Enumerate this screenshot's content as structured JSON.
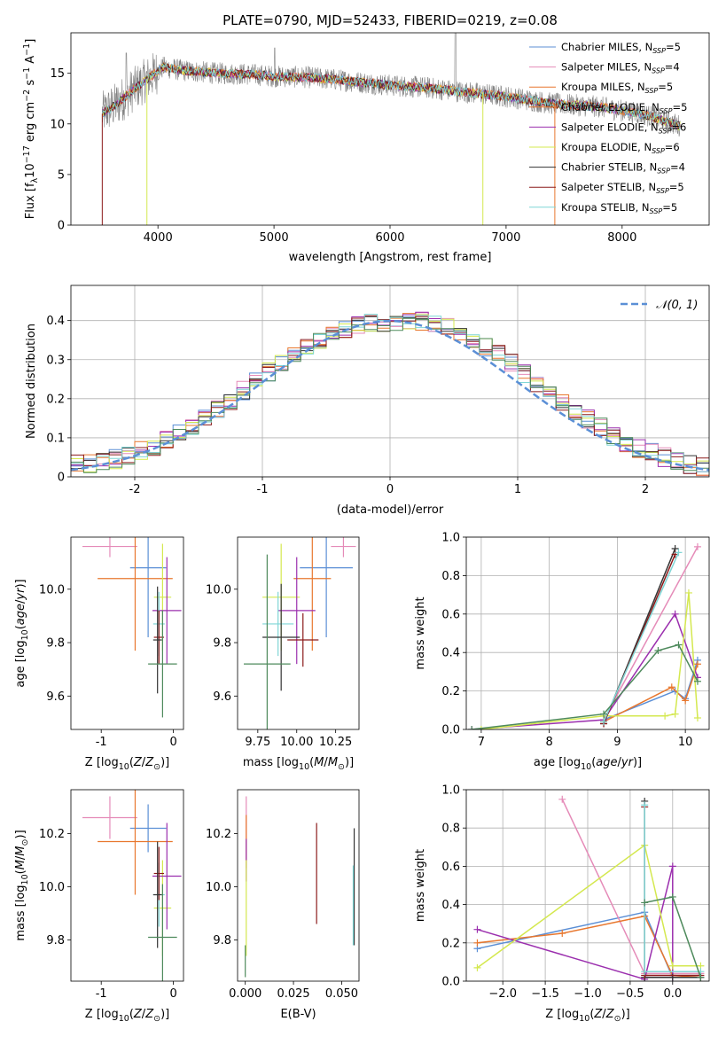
{
  "colors": {
    "Chabrier MILES": "#5b8fd6",
    "Salpeter MILES": "#e58bb8",
    "Kroupa MILES": "#e8772e",
    "Chabrier ELODIE": "#e8772e",
    "Salpeter ELODIE": "#9b2fae",
    "Kroupa ELODIE": "#d4e84f",
    "Chabrier STELIB": "#333333",
    "Salpeter STELIB": "#8b1a1a",
    "Kroupa STELIB": "#7fd6d6",
    "extra": "#4e8a5c",
    "data": "#808080"
  },
  "chart_data": [
    {
      "id": "spectrum",
      "type": "line",
      "title": "PLATE=0790, MJD=52433, FIBERID=0219, z=0.08",
      "xlabel": "wavelength [Angstrom, rest frame]",
      "ylabel": "Flux [f_λ10^-17 erg cm^-2 s^-1 A^-1]",
      "xlim": [
        3250,
        8750
      ],
      "ylim": [
        0,
        19
      ],
      "xticks": [
        4000,
        5000,
        6000,
        7000,
        8000
      ],
      "yticks": [
        0,
        5,
        10,
        15
      ],
      "grid": false,
      "legend_position": "top-right",
      "legend": [
        {
          "model": "Chabrier MILES",
          "n": "5"
        },
        {
          "model": "Salpeter MILES",
          "n": "4"
        },
        {
          "model": "Kroupa MILES",
          "n": "5"
        },
        {
          "model": "Chabrier ELODIE",
          "n": "5"
        },
        {
          "model": "Salpeter ELODIE",
          "n": "6"
        },
        {
          "model": "Kroupa ELODIE",
          "n": "6"
        },
        {
          "model": "Chabrier STELIB",
          "n": "4"
        },
        {
          "model": "Salpeter STELIB",
          "n": "5"
        },
        {
          "model": "Kroupa STELIB",
          "n": "5"
        }
      ],
      "continuum": {
        "x": [
          3520,
          3650,
          3800,
          3950,
          4050,
          4200,
          4500,
          4800,
          5000,
          5300,
          5600,
          6000,
          6300,
          6600,
          7000,
          7400,
          7800,
          8200,
          8500
        ],
        "y": [
          11.0,
          12.0,
          13.5,
          14.8,
          15.6,
          15.3,
          15.0,
          14.9,
          14.7,
          14.6,
          14.3,
          13.8,
          13.6,
          13.2,
          12.7,
          12.0,
          11.7,
          10.9,
          9.8
        ]
      }
    },
    {
      "id": "residuals",
      "type": "line",
      "xlabel": "(data-model)/error",
      "ylabel": "Normed distribution",
      "xlim": [
        -2.5,
        2.5
      ],
      "ylim": [
        0,
        0.49
      ],
      "xticks": [
        -2,
        -1,
        0,
        1,
        2
      ],
      "yticks": [
        0.0,
        0.1,
        0.2,
        0.3,
        0.4
      ],
      "grid": true,
      "legend_position": "top-right",
      "legend_label": "𝒩(0, 1)",
      "gaussian": {
        "mu": 0,
        "sigma": 1
      },
      "bin_width": 0.1,
      "hist_center": [
        0.032,
        0.035,
        0.04,
        0.045,
        0.055,
        0.066,
        0.079,
        0.094,
        0.111,
        0.13,
        0.15,
        0.173,
        0.196,
        0.221,
        0.245,
        0.269,
        0.292,
        0.313,
        0.331,
        0.347,
        0.36,
        0.375,
        0.39,
        0.395,
        0.393,
        0.395,
        0.399,
        0.397,
        0.391,
        0.381,
        0.368,
        0.352,
        0.333,
        0.312,
        0.289,
        0.265,
        0.241,
        0.217,
        0.194,
        0.17,
        0.147,
        0.126,
        0.106,
        0.089,
        0.074,
        0.061,
        0.05,
        0.04,
        0.03,
        0.025
      ]
    },
    {
      "id": "age-vs-Z",
      "type": "scatter",
      "xlabel": "Z [log10(Z/Z⊙)]",
      "ylabel": "age  [log10(age/yr)]",
      "xlim": [
        -1.42,
        0.14
      ],
      "ylim": [
        9.475,
        10.195
      ],
      "xticks": [
        -1,
        0
      ],
      "yticks": [
        9.6,
        9.8,
        10.0
      ],
      "grid": false,
      "points": [
        {
          "model": "Salpeter MILES",
          "x": -0.88,
          "y": 10.16,
          "xerr": 0.38,
          "yerr": 0.04
        },
        {
          "model": "Chabrier MILES",
          "x": -0.35,
          "y": 10.08,
          "xerr": 0.25,
          "yerr": 0.26
        },
        {
          "model": "Kroupa MILES",
          "x": -0.53,
          "y": 10.04,
          "xerr": 0.52,
          "yerr": 0.27
        },
        {
          "model": "Kroupa ELODIE",
          "x": -0.15,
          "y": 9.97,
          "xerr": 0.12,
          "yerr": 0.2
        },
        {
          "model": "Salpeter ELODIE",
          "x": -0.09,
          "y": 9.92,
          "xerr": 0.2,
          "yerr": 0.2
        },
        {
          "model": "Kroupa STELIB",
          "x": -0.2,
          "y": 9.87,
          "xerr": 0.08,
          "yerr": 0.12
        },
        {
          "model": "Salpeter STELIB",
          "x": -0.2,
          "y": 9.82,
          "xerr": 0.07,
          "yerr": 0.1
        },
        {
          "model": "Chabrier STELIB",
          "x": -0.22,
          "y": 9.81,
          "xerr": 0.06,
          "yerr": 0.2
        },
        {
          "model": "extra",
          "x": -0.15,
          "y": 9.72,
          "xerr": 0.2,
          "yerr": 0.2
        }
      ]
    },
    {
      "id": "age-vs-mass",
      "type": "scatter",
      "xlabel": "mass [log10(M/M⊙)]",
      "ylabel": "",
      "xlim": [
        9.62,
        10.4
      ],
      "ylim": [
        9.475,
        10.195
      ],
      "xticks": [
        9.75,
        10.0,
        10.25
      ],
      "yticks": [
        9.6,
        9.8,
        10.0
      ],
      "grid": false,
      "points": [
        {
          "model": "Salpeter MILES",
          "x": 10.3,
          "y": 10.16,
          "xerr": 0.08,
          "yerr": 0.04
        },
        {
          "model": "Chabrier MILES",
          "x": 10.19,
          "y": 10.08,
          "xerr": 0.17,
          "yerr": 0.26
        },
        {
          "model": "Kroupa MILES",
          "x": 10.1,
          "y": 10.04,
          "xerr": 0.12,
          "yerr": 0.27
        },
        {
          "model": "Kroupa ELODIE",
          "x": 9.9,
          "y": 9.97,
          "xerr": 0.12,
          "yerr": 0.2
        },
        {
          "model": "Salpeter ELODIE",
          "x": 10.0,
          "y": 9.92,
          "xerr": 0.12,
          "yerr": 0.2
        },
        {
          "model": "Kroupa STELIB",
          "x": 9.88,
          "y": 9.87,
          "xerr": 0.1,
          "yerr": 0.12
        },
        {
          "model": "Salpeter STELIB",
          "x": 10.04,
          "y": 9.81,
          "xerr": 0.1,
          "yerr": 0.1
        },
        {
          "model": "Chabrier STELIB",
          "x": 9.9,
          "y": 9.82,
          "xerr": 0.12,
          "yerr": 0.2
        },
        {
          "model": "extra",
          "x": 9.81,
          "y": 9.72,
          "xerr": 0.15,
          "yerr": 0.41
        }
      ]
    },
    {
      "id": "weight-vs-age",
      "type": "line",
      "xlabel": "age  [log10(age/yr)]",
      "ylabel": "mass weight",
      "xlim": [
        6.78,
        10.35
      ],
      "ylim": [
        0,
        1.0
      ],
      "xticks": [
        7,
        8,
        9,
        10
      ],
      "yticks": [
        0.0,
        0.2,
        0.4,
        0.6,
        0.8,
        1.0
      ],
      "grid": true,
      "series": [
        {
          "model": "Chabrier MILES",
          "x": [
            8.8,
            9.85,
            10.0,
            10.18
          ],
          "y": [
            0.05,
            0.2,
            0.16,
            0.36
          ]
        },
        {
          "model": "Salpeter MILES",
          "x": [
            8.8,
            10.18
          ],
          "y": [
            0.05,
            0.95
          ]
        },
        {
          "model": "Kroupa MILES",
          "x": [
            8.8,
            9.8,
            10.0,
            10.18
          ],
          "y": [
            0.04,
            0.22,
            0.15,
            0.34
          ]
        },
        {
          "model": "Salpeter ELODIE",
          "x": [
            6.86,
            8.8,
            9.85,
            10.18
          ],
          "y": [
            0.0,
            0.05,
            0.6,
            0.27
          ]
        },
        {
          "model": "Kroupa ELODIE",
          "x": [
            7.0,
            8.8,
            9.7,
            9.85,
            10.05,
            10.18
          ],
          "y": [
            0.0,
            0.07,
            0.07,
            0.08,
            0.71,
            0.06
          ]
        },
        {
          "model": "Chabrier STELIB",
          "x": [
            8.8,
            9.85
          ],
          "y": [
            0.03,
            0.94
          ]
        },
        {
          "model": "Salpeter STELIB",
          "x": [
            8.8,
            9.85
          ],
          "y": [
            0.03,
            0.91
          ]
        },
        {
          "model": "Kroupa STELIB",
          "x": [
            8.8,
            9.9
          ],
          "y": [
            0.04,
            0.92
          ]
        },
        {
          "model": "extra",
          "x": [
            6.86,
            8.8,
            9.6,
            9.9,
            10.18
          ],
          "y": [
            0.0,
            0.08,
            0.41,
            0.44,
            0.25
          ]
        }
      ]
    },
    {
      "id": "mass-vs-Z",
      "type": "scatter",
      "xlabel": "Z [log10(Z/Z⊙)]",
      "ylabel": "mass [log10(M/M⊙)]",
      "xlim": [
        -1.42,
        0.14
      ],
      "ylim": [
        9.645,
        10.365
      ],
      "xticks": [
        -1,
        0
      ],
      "yticks": [
        9.8,
        10.0,
        10.2
      ],
      "grid": false,
      "points": [
        {
          "model": "Salpeter MILES",
          "x": -0.88,
          "y": 10.26,
          "xerr": 0.38,
          "yerr": 0.08
        },
        {
          "model": "Chabrier MILES",
          "x": -0.35,
          "y": 10.22,
          "xerr": 0.25,
          "yerr": 0.09
        },
        {
          "model": "Kroupa MILES",
          "x": -0.53,
          "y": 10.17,
          "xerr": 0.52,
          "yerr": 0.2
        },
        {
          "model": "Kroupa ELODIE",
          "x": -0.15,
          "y": 9.92,
          "xerr": 0.12,
          "yerr": 0.18
        },
        {
          "model": "Salpeter ELODIE",
          "x": -0.09,
          "y": 10.04,
          "xerr": 0.2,
          "yerr": 0.2
        },
        {
          "model": "Kroupa STELIB",
          "x": -0.2,
          "y": 9.97,
          "xerr": 0.08,
          "yerr": 0.12
        },
        {
          "model": "Salpeter STELIB",
          "x": -0.2,
          "y": 10.05,
          "xerr": 0.07,
          "yerr": 0.1
        },
        {
          "model": "Chabrier STELIB",
          "x": -0.22,
          "y": 9.97,
          "xerr": 0.06,
          "yerr": 0.2
        },
        {
          "model": "extra",
          "x": -0.15,
          "y": 9.81,
          "xerr": 0.2,
          "yerr": 0.2
        }
      ]
    },
    {
      "id": "mass-vs-EBV",
      "type": "scatter",
      "xlabel": "E(B-V)",
      "ylabel": "",
      "xlim": [
        -0.004,
        0.059
      ],
      "ylim": [
        9.645,
        10.365
      ],
      "xticks": [
        0.0,
        0.025,
        0.05
      ],
      "yticks": [
        9.8,
        10.0,
        10.2
      ],
      "grid": false,
      "points": [
        {
          "model": "Salpeter MILES",
          "x": 0.0005,
          "y": 10.26,
          "xerr": 0,
          "yerr": 0.08
        },
        {
          "model": "Kroupa MILES",
          "x": 0.0005,
          "y": 10.17,
          "xerr": 0,
          "yerr": 0.1
        },
        {
          "model": "Salpeter ELODIE",
          "x": 0.0005,
          "y": 10.1,
          "xerr": 0,
          "yerr": 0.08
        },
        {
          "model": "Kroupa ELODIE",
          "x": 0.0005,
          "y": 9.92,
          "xerr": 0,
          "yerr": 0.18
        },
        {
          "model": "extra",
          "x": 0.0,
          "y": 9.72,
          "xerr": 0,
          "yerr": 0.06
        },
        {
          "model": "Salpeter STELIB",
          "x": 0.037,
          "y": 10.05,
          "xerr": 0,
          "yerr": 0.19
        },
        {
          "model": "Chabrier STELIB",
          "x": 0.0565,
          "y": 10.0,
          "xerr": 0,
          "yerr": 0.22
        },
        {
          "model": "Kroupa STELIB",
          "x": 0.056,
          "y": 9.93,
          "xerr": 0,
          "yerr": 0.15
        }
      ]
    },
    {
      "id": "weight-vs-Z",
      "type": "line",
      "xlabel": "Z [log10(Z/Z⊙)]",
      "ylabel": "mass weight",
      "xlim": [
        -2.43,
        0.43
      ],
      "ylim": [
        0,
        1.0
      ],
      "xticks": [
        -2.0,
        -1.5,
        -1.0,
        -0.5,
        0.0
      ],
      "yticks": [
        0.0,
        0.2,
        0.4,
        0.6,
        0.8,
        1.0
      ],
      "grid": true,
      "series": [
        {
          "model": "Chabrier MILES",
          "x": [
            -2.3,
            -0.33,
            0.0,
            0.33
          ],
          "y": [
            0.17,
            0.36,
            0.02,
            0.02
          ]
        },
        {
          "model": "Salpeter MILES",
          "x": [
            -1.3,
            -0.33,
            0.33
          ],
          "y": [
            0.95,
            0.04,
            0.04
          ]
        },
        {
          "model": "Kroupa MILES",
          "x": [
            -2.3,
            -1.3,
            -0.33,
            0.0,
            0.33
          ],
          "y": [
            0.2,
            0.25,
            0.34,
            0.03,
            0.02
          ]
        },
        {
          "model": "Salpeter ELODIE",
          "x": [
            -2.3,
            -0.33,
            0.0,
            0.0,
            0.33
          ],
          "y": [
            0.27,
            0.01,
            0.6,
            0.02,
            0.02
          ]
        },
        {
          "model": "Kroupa ELODIE",
          "x": [
            -2.3,
            -0.33,
            0.0,
            0.33
          ],
          "y": [
            0.07,
            0.71,
            0.08,
            0.08
          ]
        },
        {
          "model": "Chabrier STELIB",
          "x": [
            -0.33,
            -0.33,
            0.0,
            0.33
          ],
          "y": [
            0.94,
            0.02,
            0.02,
            0.02
          ]
        },
        {
          "model": "Salpeter STELIB",
          "x": [
            -0.33,
            -0.33,
            0.33
          ],
          "y": [
            0.91,
            0.03,
            0.03
          ]
        },
        {
          "model": "Kroupa STELIB",
          "x": [
            -0.33,
            -0.33,
            0.33
          ],
          "y": [
            0.92,
            0.05,
            0.05
          ]
        },
        {
          "model": "extra",
          "x": [
            -0.33,
            0.0,
            0.33
          ],
          "y": [
            0.41,
            0.44,
            0.02
          ]
        }
      ]
    }
  ]
}
